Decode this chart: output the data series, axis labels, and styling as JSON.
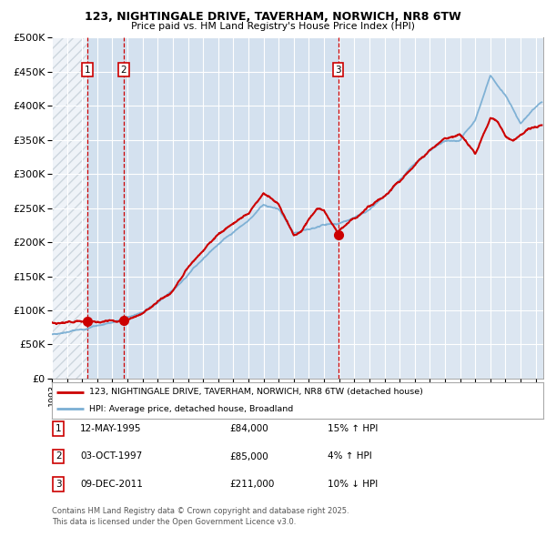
{
  "title1": "123, NIGHTINGALE DRIVE, TAVERHAM, NORWICH, NR8 6TW",
  "title2": "Price paid vs. HM Land Registry's House Price Index (HPI)",
  "legend_line1": "123, NIGHTINGALE DRIVE, TAVERHAM, NORWICH, NR8 6TW (detached house)",
  "legend_line2": "HPI: Average price, detached house, Broadland",
  "footer": "Contains HM Land Registry data © Crown copyright and database right 2025.\nThis data is licensed under the Open Government Licence v3.0.",
  "sale_color": "#cc0000",
  "hpi_color": "#7bafd4",
  "background_chart": "#dce6f1",
  "background_fig": "#ffffff",
  "grid_color": "#ffffff",
  "vline_color": "#cc0000",
  "annotations": [
    {
      "n": 1,
      "date_num": 1995.36,
      "price": 84000
    },
    {
      "n": 2,
      "date_num": 1997.75,
      "price": 85000
    },
    {
      "n": 3,
      "date_num": 2011.93,
      "price": 211000
    }
  ],
  "table_rows": [
    {
      "n": 1,
      "date": "12-MAY-1995",
      "price": "£84,000",
      "pct": "15% ↑ HPI"
    },
    {
      "n": 2,
      "date": "03-OCT-1997",
      "price": "£85,000",
      "pct": "4% ↑ HPI"
    },
    {
      "n": 3,
      "date": "09-DEC-2011",
      "price": "£211,000",
      "pct": "10% ↓ HPI"
    }
  ],
  "ylim": [
    0,
    500000
  ],
  "yticks": [
    0,
    50000,
    100000,
    150000,
    200000,
    250000,
    300000,
    350000,
    400000,
    450000,
    500000
  ],
  "xlim_start": 1993.0,
  "xlim_end": 2025.5,
  "hatch_region_end": 1995.36,
  "hpi_knots_x": [
    1993,
    1994,
    1995,
    1996,
    1997,
    1998,
    1999,
    2000,
    2001,
    2002,
    2003,
    2004,
    2005,
    2006,
    2007,
    2008,
    2009,
    2010,
    2011,
    2012,
    2013,
    2014,
    2015,
    2016,
    2017,
    2018,
    2019,
    2020,
    2021,
    2022,
    2023,
    2024,
    2025.3
  ],
  "hpi_knots_y": [
    65000,
    68000,
    72000,
    78000,
    82000,
    90000,
    98000,
    112000,
    130000,
    152000,
    175000,
    198000,
    215000,
    232000,
    255000,
    248000,
    212000,
    220000,
    225000,
    228000,
    235000,
    248000,
    268000,
    290000,
    315000,
    335000,
    348000,
    350000,
    380000,
    445000,
    415000,
    375000,
    405000
  ],
  "prop_knots_x": [
    1993,
    1994.5,
    1995.36,
    1996,
    1997,
    1997.75,
    1998,
    1999,
    2000,
    2001,
    2002,
    2003,
    2004,
    2005,
    2006,
    2007,
    2007.5,
    2008,
    2009,
    2009.5,
    2010,
    2010.5,
    2011,
    2011.93,
    2012,
    2012.5,
    2013,
    2014,
    2015,
    2016,
    2017,
    2018,
    2019,
    2020,
    2021,
    2021.5,
    2022,
    2022.5,
    2023,
    2023.5,
    2024,
    2024.5,
    2025.3
  ],
  "prop_knots_y": [
    82000,
    83000,
    84000,
    83500,
    84000,
    85000,
    86000,
    95000,
    112000,
    128000,
    162000,
    188000,
    212000,
    228000,
    242000,
    272000,
    265000,
    256000,
    210000,
    215000,
    235000,
    248000,
    248000,
    211000,
    218000,
    228000,
    235000,
    252000,
    268000,
    290000,
    312000,
    335000,
    352000,
    358000,
    330000,
    355000,
    382000,
    378000,
    355000,
    348000,
    358000,
    365000,
    370000
  ]
}
